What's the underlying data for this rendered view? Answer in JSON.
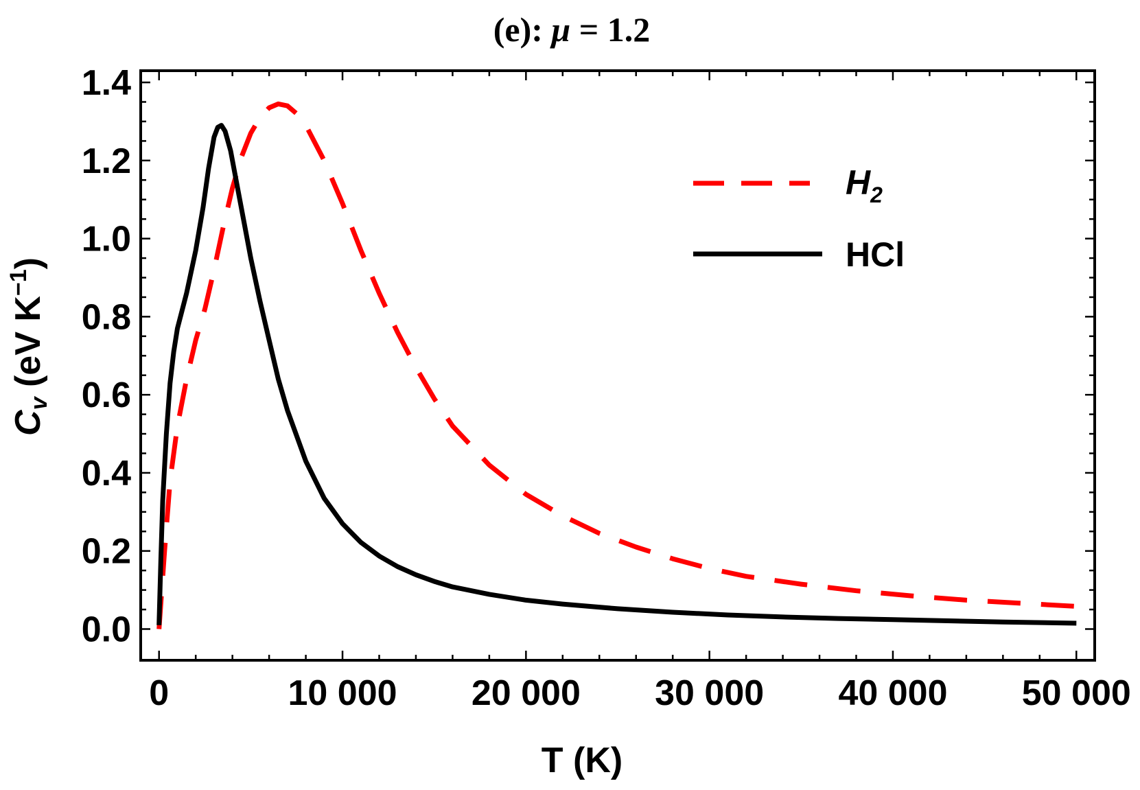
{
  "chart_data": {
    "type": "line",
    "title_prefix": "(e): ",
    "title_symbol": "μ",
    "title_value": " = 1.2",
    "xlabel": "T (K)",
    "ylabel_main": "C",
    "ylabel_sub": "v",
    "ylabel_units": " (eV K",
    "ylabel_sup": "−1",
    "ylabel_close": ")",
    "xlim": [
      -1000,
      51000
    ],
    "ylim": [
      -0.08,
      1.43
    ],
    "x_ticks": [
      0,
      10000,
      20000,
      30000,
      40000,
      50000
    ],
    "x_tick_labels": [
      "0",
      "10 000",
      "20 000",
      "30 000",
      "40 000",
      "50 000"
    ],
    "y_ticks": [
      0.0,
      0.2,
      0.4,
      0.6,
      0.8,
      1.0,
      1.2,
      1.4
    ],
    "y_tick_labels": [
      "0.0",
      "0.2",
      "0.4",
      "0.6",
      "0.8",
      "1.0",
      "1.2",
      "1.4"
    ],
    "grid": false,
    "legend_position": "top-right",
    "series": [
      {
        "name_main": "H",
        "name_sub": "2",
        "color": "#ff0000",
        "style": "dashed",
        "x": [
          0,
          300,
          600,
          1000,
          1500,
          2000,
          2500,
          3000,
          3500,
          4000,
          4500,
          5000,
          5500,
          6000,
          6500,
          7000,
          7500,
          8000,
          9000,
          10000,
          11000,
          12000,
          13000,
          14000,
          15000,
          16000,
          17000,
          18000,
          20000,
          22000,
          24000,
          26000,
          28000,
          30000,
          32000,
          35000,
          38000,
          41000,
          44000,
          47000,
          50000
        ],
        "y": [
          0.0,
          0.2,
          0.38,
          0.52,
          0.64,
          0.74,
          0.82,
          0.92,
          1.03,
          1.13,
          1.21,
          1.27,
          1.31,
          1.335,
          1.345,
          1.34,
          1.32,
          1.29,
          1.2,
          1.09,
          0.97,
          0.86,
          0.76,
          0.67,
          0.59,
          0.52,
          0.47,
          0.42,
          0.345,
          0.29,
          0.245,
          0.21,
          0.18,
          0.155,
          0.135,
          0.115,
          0.098,
          0.085,
          0.074,
          0.066,
          0.058
        ]
      },
      {
        "name_main": "HCl",
        "name_sub": "",
        "color": "#000000",
        "style": "solid",
        "x": [
          0,
          100,
          200,
          400,
          600,
          800,
          1000,
          1500,
          2000,
          2400,
          2700,
          3000,
          3200,
          3400,
          3600,
          3900,
          4200,
          4600,
          5000,
          5500,
          6000,
          6500,
          7000,
          8000,
          9000,
          10000,
          11000,
          12000,
          13000,
          14000,
          15000,
          16000,
          18000,
          20000,
          22000,
          25000,
          28000,
          31000,
          34000,
          37000,
          40000,
          43000,
          46000,
          50000
        ],
        "y": [
          0.01,
          0.18,
          0.33,
          0.5,
          0.63,
          0.71,
          0.77,
          0.86,
          0.97,
          1.08,
          1.18,
          1.26,
          1.285,
          1.29,
          1.275,
          1.225,
          1.15,
          1.05,
          0.95,
          0.84,
          0.74,
          0.64,
          0.56,
          0.43,
          0.335,
          0.27,
          0.222,
          0.187,
          0.16,
          0.139,
          0.122,
          0.108,
          0.089,
          0.074,
          0.064,
          0.052,
          0.043,
          0.036,
          0.031,
          0.027,
          0.024,
          0.021,
          0.018,
          0.015
        ]
      }
    ]
  }
}
